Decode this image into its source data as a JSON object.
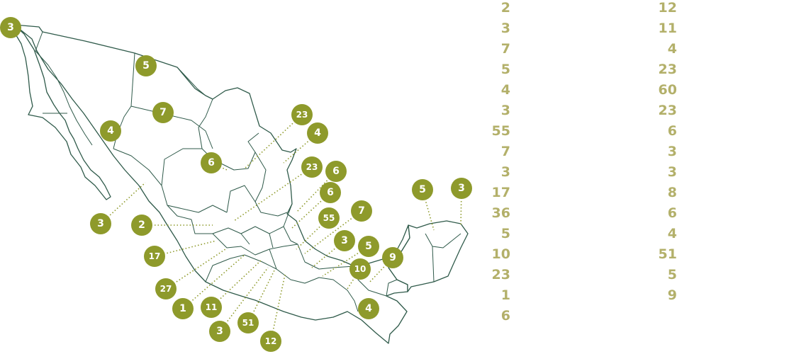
{
  "map": {
    "badges": [
      {
        "id": "baja-california",
        "label": "3"
      },
      {
        "id": "chihuahua",
        "label": "5"
      },
      {
        "id": "chihuahua-south",
        "label": "7"
      },
      {
        "id": "sonora",
        "label": "4"
      },
      {
        "id": "coahuila",
        "label": "6"
      },
      {
        "id": "nuevo-leon",
        "label": "23"
      },
      {
        "id": "tamaulipas",
        "label": "4"
      },
      {
        "id": "sinaloa",
        "label": "3"
      },
      {
        "id": "nayarit",
        "label": "2"
      },
      {
        "id": "jalisco",
        "label": "17"
      },
      {
        "id": "colima",
        "label": "27"
      },
      {
        "id": "michoacan",
        "label": "1"
      },
      {
        "id": "guerrero-west",
        "label": "11"
      },
      {
        "id": "guerrero",
        "label": "3"
      },
      {
        "id": "morelos",
        "label": "51"
      },
      {
        "id": "puebla-south",
        "label": "12"
      },
      {
        "id": "san-luis-potosi",
        "label": "23"
      },
      {
        "id": "veracruz-north",
        "label": "6"
      },
      {
        "id": "hidalgo",
        "label": "6"
      },
      {
        "id": "mexico-city",
        "label": "55"
      },
      {
        "id": "tlaxcala",
        "label": "7"
      },
      {
        "id": "puebla",
        "label": "3"
      },
      {
        "id": "veracruz",
        "label": "5"
      },
      {
        "id": "oaxaca",
        "label": "10"
      },
      {
        "id": "tabasco",
        "label": "9"
      },
      {
        "id": "chiapas",
        "label": "4"
      },
      {
        "id": "yucatan",
        "label": "5"
      },
      {
        "id": "quintana-roo",
        "label": "3"
      }
    ]
  },
  "list_left": [
    "2",
    "3",
    "7",
    "5",
    "4",
    "3",
    "55",
    "7",
    "3",
    "17",
    "36",
    "5",
    "10",
    "23",
    "1",
    "6"
  ],
  "list_right": [
    "12",
    "11",
    "4",
    "23",
    "60",
    "23",
    "6",
    "3",
    "3",
    "8",
    "6",
    "4",
    "51",
    "5",
    "9"
  ],
  "colors": {
    "badge": "#8e9a2b",
    "list_text": "#b3b06a",
    "outline": "#2f5a4a"
  }
}
